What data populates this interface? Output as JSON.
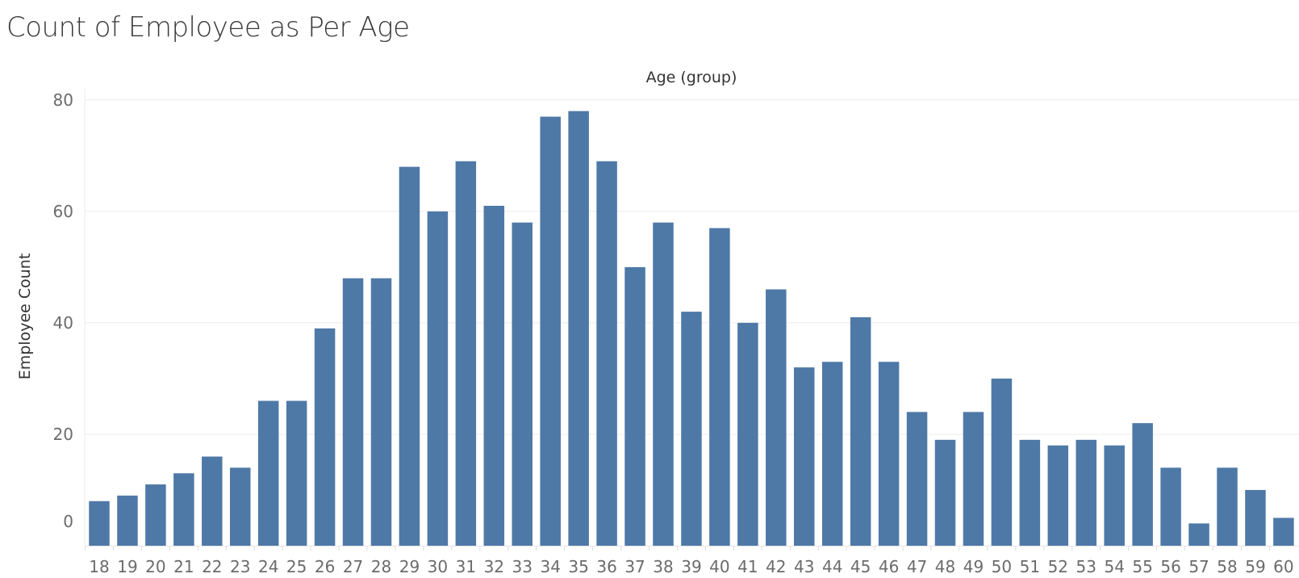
{
  "chart_data": {
    "type": "bar",
    "title": "Count of Employee as Per Age",
    "xlabel": "Age (group)",
    "ylabel": "Employee Count",
    "ylim": [
      0,
      82
    ],
    "yticks": [
      0,
      20,
      40,
      60,
      80
    ],
    "grid": true,
    "bar_color": "#4e79a7",
    "categories": [
      "18",
      "19",
      "20",
      "21",
      "22",
      "23",
      "24",
      "25",
      "26",
      "27",
      "28",
      "29",
      "30",
      "31",
      "32",
      "33",
      "34",
      "35",
      "36",
      "37",
      "38",
      "39",
      "40",
      "41",
      "42",
      "43",
      "44",
      "45",
      "46",
      "47",
      "48",
      "49",
      "50",
      "51",
      "52",
      "53",
      "54",
      "55",
      "56",
      "57",
      "58",
      "59",
      "60"
    ],
    "values": [
      8,
      9,
      11,
      13,
      16,
      14,
      26,
      26,
      39,
      48,
      48,
      68,
      60,
      69,
      61,
      58,
      77,
      78,
      69,
      50,
      58,
      42,
      57,
      40,
      46,
      32,
      33,
      41,
      33,
      24,
      19,
      24,
      30,
      19,
      18,
      19,
      18,
      22,
      14,
      4,
      14,
      10,
      5
    ]
  }
}
